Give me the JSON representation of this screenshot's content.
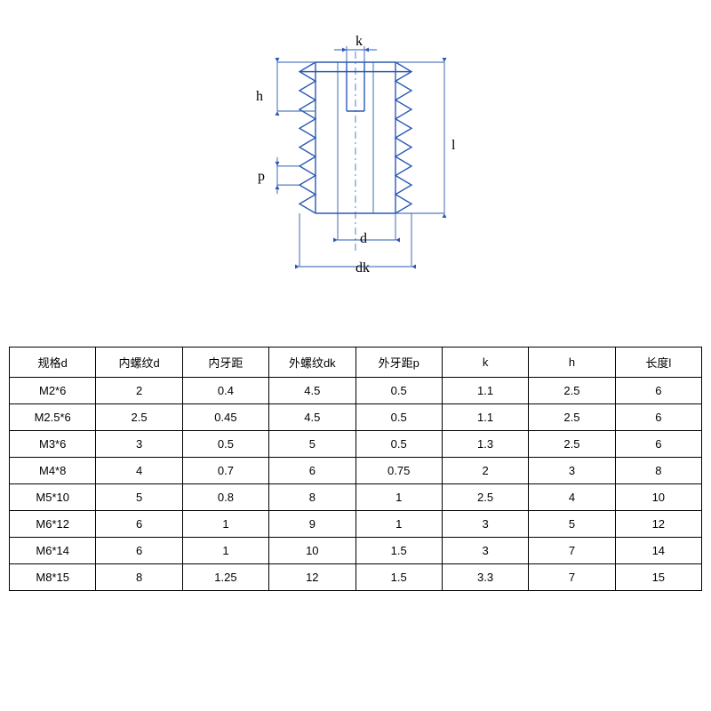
{
  "diagram": {
    "stroke": "#2b5ab5",
    "labels": {
      "k": "k",
      "h": "h",
      "p": "p",
      "l": "l",
      "d": "d",
      "dk": "dk"
    },
    "label_color": "#000000",
    "label_fontsize": 16,
    "teeth_count": 8
  },
  "table": {
    "columns": [
      "规格d",
      "内螺纹d",
      "内牙距",
      "外螺纹dk",
      "外牙距p",
      "k",
      "h",
      "长度l"
    ],
    "rows": [
      [
        "M2*6",
        "2",
        "0.4",
        "4.5",
        "0.5",
        "1.1",
        "2.5",
        "6"
      ],
      [
        "M2.5*6",
        "2.5",
        "0.45",
        "4.5",
        "0.5",
        "1.1",
        "2.5",
        "6"
      ],
      [
        "M3*6",
        "3",
        "0.5",
        "5",
        "0.5",
        "1.3",
        "2.5",
        "6"
      ],
      [
        "M4*8",
        "4",
        "0.7",
        "6",
        "0.75",
        "2",
        "3",
        "8"
      ],
      [
        "M5*10",
        "5",
        "0.8",
        "8",
        "1",
        "2.5",
        "4",
        "10"
      ],
      [
        "M6*12",
        "6",
        "1",
        "9",
        "1",
        "3",
        "5",
        "12"
      ],
      [
        "M6*14",
        "6",
        "1",
        "10",
        "1.5",
        "3",
        "7",
        "14"
      ],
      [
        "M8*15",
        "8",
        "1.25",
        "12",
        "1.5",
        "3.3",
        "7",
        "15"
      ]
    ],
    "border_color": "#000000",
    "font_size": 13
  }
}
